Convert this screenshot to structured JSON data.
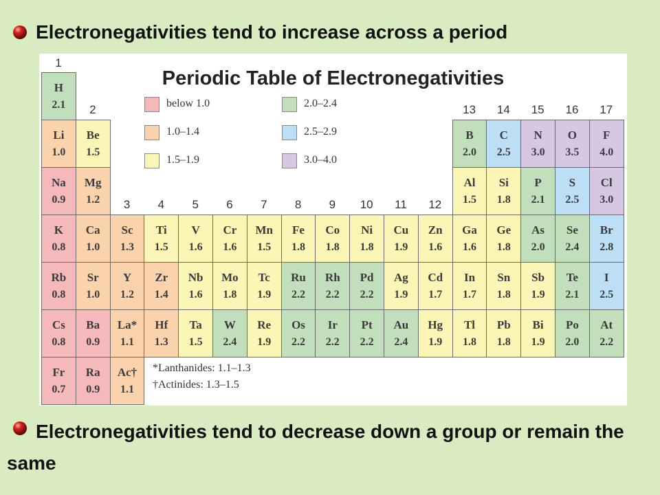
{
  "bullets": [
    "Electronegativities tend to increase across a period",
    "Electronegativities tend to decrease down a group or remain the same"
  ],
  "table": {
    "title": "Periodic Table of Electronegativities",
    "groups": [
      "1",
      "2",
      "3",
      "4",
      "5",
      "6",
      "7",
      "8",
      "9",
      "10",
      "11",
      "12",
      "13",
      "14",
      "15",
      "16",
      "17"
    ],
    "legend": [
      {
        "label": "below 1.0",
        "color": "#f5b8bb"
      },
      {
        "label": "1.0–1.4",
        "color": "#fad3ad"
      },
      {
        "label": "1.5–1.9",
        "color": "#fbf6b5"
      },
      {
        "label": "2.0–2.4",
        "color": "#c2dfbc"
      },
      {
        "label": "2.5–2.9",
        "color": "#bcdff5"
      },
      {
        "label": "3.0–4.0",
        "color": "#d6c8e3"
      }
    ],
    "periods": [
      [
        {
          "symbol": "H",
          "value": "2.1",
          "color": "#c2dfbc"
        }
      ],
      [
        {
          "symbol": "Li",
          "value": "1.0",
          "color": "#fad3ad"
        },
        {
          "symbol": "Be",
          "value": "1.5",
          "color": "#fbf6b5"
        },
        null,
        null,
        null,
        null,
        null,
        null,
        null,
        null,
        null,
        null,
        {
          "symbol": "B",
          "value": "2.0",
          "color": "#c2dfbc"
        },
        {
          "symbol": "C",
          "value": "2.5",
          "color": "#bcdff5"
        },
        {
          "symbol": "N",
          "value": "3.0",
          "color": "#d6c8e3"
        },
        {
          "symbol": "O",
          "value": "3.5",
          "color": "#d6c8e3"
        },
        {
          "symbol": "F",
          "value": "4.0",
          "color": "#d6c8e3"
        }
      ],
      [
        {
          "symbol": "Na",
          "value": "0.9",
          "color": "#f5b8bb"
        },
        {
          "symbol": "Mg",
          "value": "1.2",
          "color": "#fad3ad"
        },
        null,
        null,
        null,
        null,
        null,
        null,
        null,
        null,
        null,
        null,
        {
          "symbol": "Al",
          "value": "1.5",
          "color": "#fbf6b5"
        },
        {
          "symbol": "Si",
          "value": "1.8",
          "color": "#fbf6b5"
        },
        {
          "symbol": "P",
          "value": "2.1",
          "color": "#c2dfbc"
        },
        {
          "symbol": "S",
          "value": "2.5",
          "color": "#bcdff5"
        },
        {
          "symbol": "Cl",
          "value": "3.0",
          "color": "#d6c8e3"
        }
      ],
      [
        {
          "symbol": "K",
          "value": "0.8",
          "color": "#f5b8bb"
        },
        {
          "symbol": "Ca",
          "value": "1.0",
          "color": "#fad3ad"
        },
        {
          "symbol": "Sc",
          "value": "1.3",
          "color": "#fad3ad"
        },
        {
          "symbol": "Ti",
          "value": "1.5",
          "color": "#fbf6b5"
        },
        {
          "symbol": "V",
          "value": "1.6",
          "color": "#fbf6b5"
        },
        {
          "symbol": "Cr",
          "value": "1.6",
          "color": "#fbf6b5"
        },
        {
          "symbol": "Mn",
          "value": "1.5",
          "color": "#fbf6b5"
        },
        {
          "symbol": "Fe",
          "value": "1.8",
          "color": "#fbf6b5"
        },
        {
          "symbol": "Co",
          "value": "1.8",
          "color": "#fbf6b5"
        },
        {
          "symbol": "Ni",
          "value": "1.8",
          "color": "#fbf6b5"
        },
        {
          "symbol": "Cu",
          "value": "1.9",
          "color": "#fbf6b5"
        },
        {
          "symbol": "Zn",
          "value": "1.6",
          "color": "#fbf6b5"
        },
        {
          "symbol": "Ga",
          "value": "1.6",
          "color": "#fbf6b5"
        },
        {
          "symbol": "Ge",
          "value": "1.8",
          "color": "#fbf6b5"
        },
        {
          "symbol": "As",
          "value": "2.0",
          "color": "#c2dfbc"
        },
        {
          "symbol": "Se",
          "value": "2.4",
          "color": "#c2dfbc"
        },
        {
          "symbol": "Br",
          "value": "2.8",
          "color": "#bcdff5"
        }
      ],
      [
        {
          "symbol": "Rb",
          "value": "0.8",
          "color": "#f5b8bb"
        },
        {
          "symbol": "Sr",
          "value": "1.0",
          "color": "#fad3ad"
        },
        {
          "symbol": "Y",
          "value": "1.2",
          "color": "#fad3ad"
        },
        {
          "symbol": "Zr",
          "value": "1.4",
          "color": "#fad3ad"
        },
        {
          "symbol": "Nb",
          "value": "1.6",
          "color": "#fbf6b5"
        },
        {
          "symbol": "Mo",
          "value": "1.8",
          "color": "#fbf6b5"
        },
        {
          "symbol": "Tc",
          "value": "1.9",
          "color": "#fbf6b5"
        },
        {
          "symbol": "Ru",
          "value": "2.2",
          "color": "#c2dfbc"
        },
        {
          "symbol": "Rh",
          "value": "2.2",
          "color": "#c2dfbc"
        },
        {
          "symbol": "Pd",
          "value": "2.2",
          "color": "#c2dfbc"
        },
        {
          "symbol": "Ag",
          "value": "1.9",
          "color": "#fbf6b5"
        },
        {
          "symbol": "Cd",
          "value": "1.7",
          "color": "#fbf6b5"
        },
        {
          "symbol": "In",
          "value": "1.7",
          "color": "#fbf6b5"
        },
        {
          "symbol": "Sn",
          "value": "1.8",
          "color": "#fbf6b5"
        },
        {
          "symbol": "Sb",
          "value": "1.9",
          "color": "#fbf6b5"
        },
        {
          "symbol": "Te",
          "value": "2.1",
          "color": "#c2dfbc"
        },
        {
          "symbol": "I",
          "value": "2.5",
          "color": "#bcdff5"
        }
      ],
      [
        {
          "symbol": "Cs",
          "value": "0.8",
          "color": "#f5b8bb"
        },
        {
          "symbol": "Ba",
          "value": "0.9",
          "color": "#f5b8bb"
        },
        {
          "symbol": "La*",
          "value": "1.1",
          "color": "#fad3ad"
        },
        {
          "symbol": "Hf",
          "value": "1.3",
          "color": "#fad3ad"
        },
        {
          "symbol": "Ta",
          "value": "1.5",
          "color": "#fbf6b5"
        },
        {
          "symbol": "W",
          "value": "2.4",
          "color": "#c2dfbc"
        },
        {
          "symbol": "Re",
          "value": "1.9",
          "color": "#fbf6b5"
        },
        {
          "symbol": "Os",
          "value": "2.2",
          "color": "#c2dfbc"
        },
        {
          "symbol": "Ir",
          "value": "2.2",
          "color": "#c2dfbc"
        },
        {
          "symbol": "Pt",
          "value": "2.2",
          "color": "#c2dfbc"
        },
        {
          "symbol": "Au",
          "value": "2.4",
          "color": "#c2dfbc"
        },
        {
          "symbol": "Hg",
          "value": "1.9",
          "color": "#fbf6b5"
        },
        {
          "symbol": "Tl",
          "value": "1.8",
          "color": "#fbf6b5"
        },
        {
          "symbol": "Pb",
          "value": "1.8",
          "color": "#fbf6b5"
        },
        {
          "symbol": "Bi",
          "value": "1.9",
          "color": "#fbf6b5"
        },
        {
          "symbol": "Po",
          "value": "2.0",
          "color": "#c2dfbc"
        },
        {
          "symbol": "At",
          "value": "2.2",
          "color": "#c2dfbc"
        }
      ],
      [
        {
          "symbol": "Fr",
          "value": "0.7",
          "color": "#f5b8bb"
        },
        {
          "symbol": "Ra",
          "value": "0.9",
          "color": "#f5b8bb"
        },
        {
          "symbol": "Ac†",
          "value": "1.1",
          "color": "#fad3ad"
        }
      ]
    ],
    "footnotes": [
      "*Lanthanides: 1.1–1.3",
      "†Actinides: 1.3–1.5"
    ]
  }
}
